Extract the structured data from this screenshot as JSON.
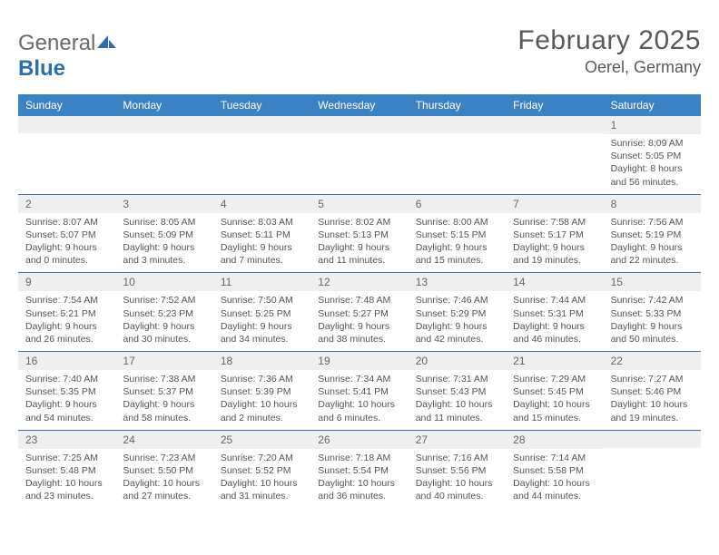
{
  "logo": {
    "general": "General",
    "blue": "Blue"
  },
  "title": "February 2025",
  "location": "Oerel, Germany",
  "colors": {
    "header_bg": "#3b82c4",
    "header_text": "#ffffff",
    "divider": "#4a6fa0",
    "daynum_bg": "#efefef",
    "body_text": "#555555",
    "logo_gray": "#6a6a6a",
    "logo_blue": "#2c6fb0"
  },
  "weekdays": [
    "Sunday",
    "Monday",
    "Tuesday",
    "Wednesday",
    "Thursday",
    "Friday",
    "Saturday"
  ],
  "weeks": [
    [
      null,
      null,
      null,
      null,
      null,
      null,
      {
        "n": "1",
        "sunrise": "8:09 AM",
        "sunset": "5:05 PM",
        "dl_h": "8",
        "dl_m": "56"
      }
    ],
    [
      {
        "n": "2",
        "sunrise": "8:07 AM",
        "sunset": "5:07 PM",
        "dl_h": "9",
        "dl_m": "0"
      },
      {
        "n": "3",
        "sunrise": "8:05 AM",
        "sunset": "5:09 PM",
        "dl_h": "9",
        "dl_m": "3"
      },
      {
        "n": "4",
        "sunrise": "8:03 AM",
        "sunset": "5:11 PM",
        "dl_h": "9",
        "dl_m": "7"
      },
      {
        "n": "5",
        "sunrise": "8:02 AM",
        "sunset": "5:13 PM",
        "dl_h": "9",
        "dl_m": "11"
      },
      {
        "n": "6",
        "sunrise": "8:00 AM",
        "sunset": "5:15 PM",
        "dl_h": "9",
        "dl_m": "15"
      },
      {
        "n": "7",
        "sunrise": "7:58 AM",
        "sunset": "5:17 PM",
        "dl_h": "9",
        "dl_m": "19"
      },
      {
        "n": "8",
        "sunrise": "7:56 AM",
        "sunset": "5:19 PM",
        "dl_h": "9",
        "dl_m": "22"
      }
    ],
    [
      {
        "n": "9",
        "sunrise": "7:54 AM",
        "sunset": "5:21 PM",
        "dl_h": "9",
        "dl_m": "26"
      },
      {
        "n": "10",
        "sunrise": "7:52 AM",
        "sunset": "5:23 PM",
        "dl_h": "9",
        "dl_m": "30"
      },
      {
        "n": "11",
        "sunrise": "7:50 AM",
        "sunset": "5:25 PM",
        "dl_h": "9",
        "dl_m": "34"
      },
      {
        "n": "12",
        "sunrise": "7:48 AM",
        "sunset": "5:27 PM",
        "dl_h": "9",
        "dl_m": "38"
      },
      {
        "n": "13",
        "sunrise": "7:46 AM",
        "sunset": "5:29 PM",
        "dl_h": "9",
        "dl_m": "42"
      },
      {
        "n": "14",
        "sunrise": "7:44 AM",
        "sunset": "5:31 PM",
        "dl_h": "9",
        "dl_m": "46"
      },
      {
        "n": "15",
        "sunrise": "7:42 AM",
        "sunset": "5:33 PM",
        "dl_h": "9",
        "dl_m": "50"
      }
    ],
    [
      {
        "n": "16",
        "sunrise": "7:40 AM",
        "sunset": "5:35 PM",
        "dl_h": "9",
        "dl_m": "54"
      },
      {
        "n": "17",
        "sunrise": "7:38 AM",
        "sunset": "5:37 PM",
        "dl_h": "9",
        "dl_m": "58"
      },
      {
        "n": "18",
        "sunrise": "7:36 AM",
        "sunset": "5:39 PM",
        "dl_h": "10",
        "dl_m": "2"
      },
      {
        "n": "19",
        "sunrise": "7:34 AM",
        "sunset": "5:41 PM",
        "dl_h": "10",
        "dl_m": "6"
      },
      {
        "n": "20",
        "sunrise": "7:31 AM",
        "sunset": "5:43 PM",
        "dl_h": "10",
        "dl_m": "11"
      },
      {
        "n": "21",
        "sunrise": "7:29 AM",
        "sunset": "5:45 PM",
        "dl_h": "10",
        "dl_m": "15"
      },
      {
        "n": "22",
        "sunrise": "7:27 AM",
        "sunset": "5:46 PM",
        "dl_h": "10",
        "dl_m": "19"
      }
    ],
    [
      {
        "n": "23",
        "sunrise": "7:25 AM",
        "sunset": "5:48 PM",
        "dl_h": "10",
        "dl_m": "23"
      },
      {
        "n": "24",
        "sunrise": "7:23 AM",
        "sunset": "5:50 PM",
        "dl_h": "10",
        "dl_m": "27"
      },
      {
        "n": "25",
        "sunrise": "7:20 AM",
        "sunset": "5:52 PM",
        "dl_h": "10",
        "dl_m": "31"
      },
      {
        "n": "26",
        "sunrise": "7:18 AM",
        "sunset": "5:54 PM",
        "dl_h": "10",
        "dl_m": "36"
      },
      {
        "n": "27",
        "sunrise": "7:16 AM",
        "sunset": "5:56 PM",
        "dl_h": "10",
        "dl_m": "40"
      },
      {
        "n": "28",
        "sunrise": "7:14 AM",
        "sunset": "5:58 PM",
        "dl_h": "10",
        "dl_m": "44"
      },
      null
    ]
  ]
}
